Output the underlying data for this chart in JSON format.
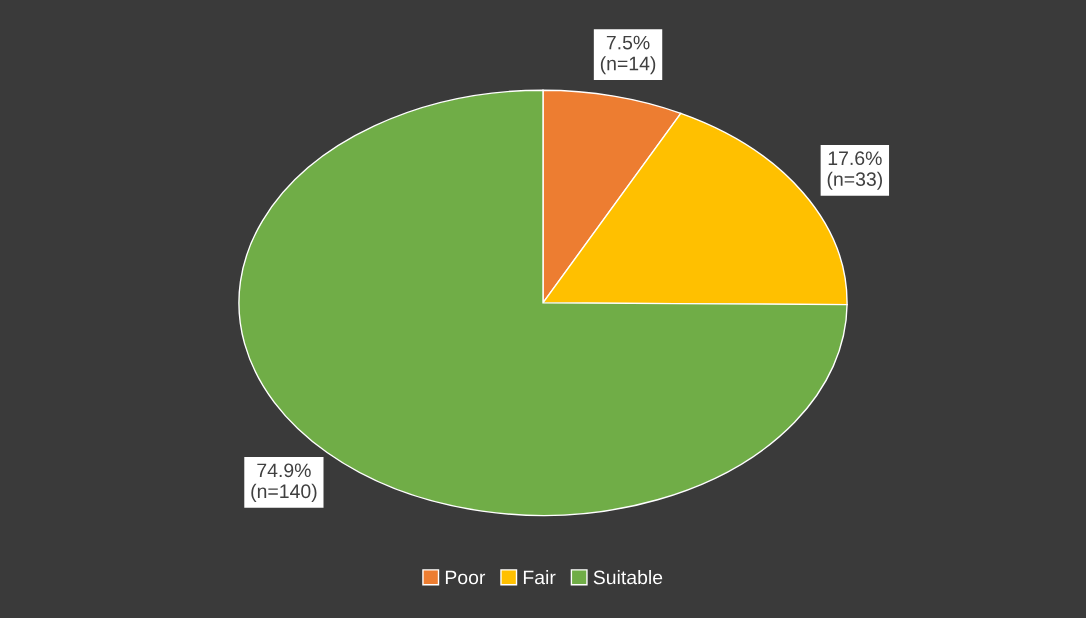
{
  "chart_data": {
    "type": "pie",
    "categories": [
      "Poor",
      "Fair",
      "Suitable"
    ],
    "values": [
      14,
      33,
      140
    ],
    "colors": [
      "#ed7d31",
      "#ffc000",
      "#70ad47"
    ],
    "value_labels": [
      "7.5%\n(n=14)",
      "17.6%\n(n=33)",
      "74.9%\n(n=140)"
    ],
    "legend": "bottom"
  }
}
